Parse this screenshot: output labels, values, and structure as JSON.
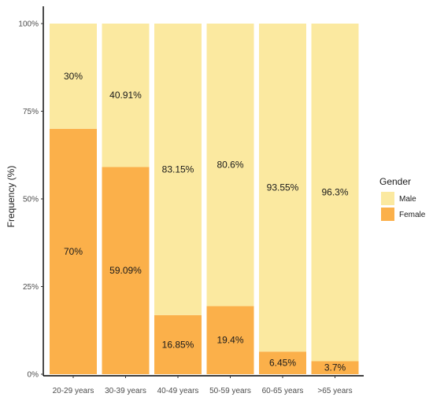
{
  "chart_data": {
    "type": "bar",
    "stacked": true,
    "title": "",
    "xlabel": "",
    "ylabel": "Frequency (%)",
    "ylim": [
      0,
      100
    ],
    "y_ticks": [
      "0%",
      "25%",
      "50%",
      "75%",
      "100%"
    ],
    "categories": [
      "20-29 years",
      "30-39 years",
      "40-49 years",
      "50-59 years",
      "60-65 years",
      ">65 years"
    ],
    "series": [
      {
        "name": "Female",
        "color": "#fbb04a",
        "values": [
          70,
          59.09,
          16.85,
          19.4,
          6.45,
          3.7
        ],
        "labels": [
          "70%",
          "59.09%",
          "16.85%",
          "19.4%",
          "6.45%",
          "3.7%"
        ]
      },
      {
        "name": "Male",
        "color": "#fbe9a0",
        "values": [
          30,
          40.91,
          83.15,
          80.6,
          93.55,
          96.3
        ],
        "labels": [
          "30%",
          "40.91%",
          "83.15%",
          "80.6%",
          "93.55%",
          "96.3%"
        ]
      }
    ],
    "grid": false,
    "legend": {
      "title": "Gender",
      "position": "right",
      "entries": [
        "Male",
        "Female"
      ]
    }
  }
}
